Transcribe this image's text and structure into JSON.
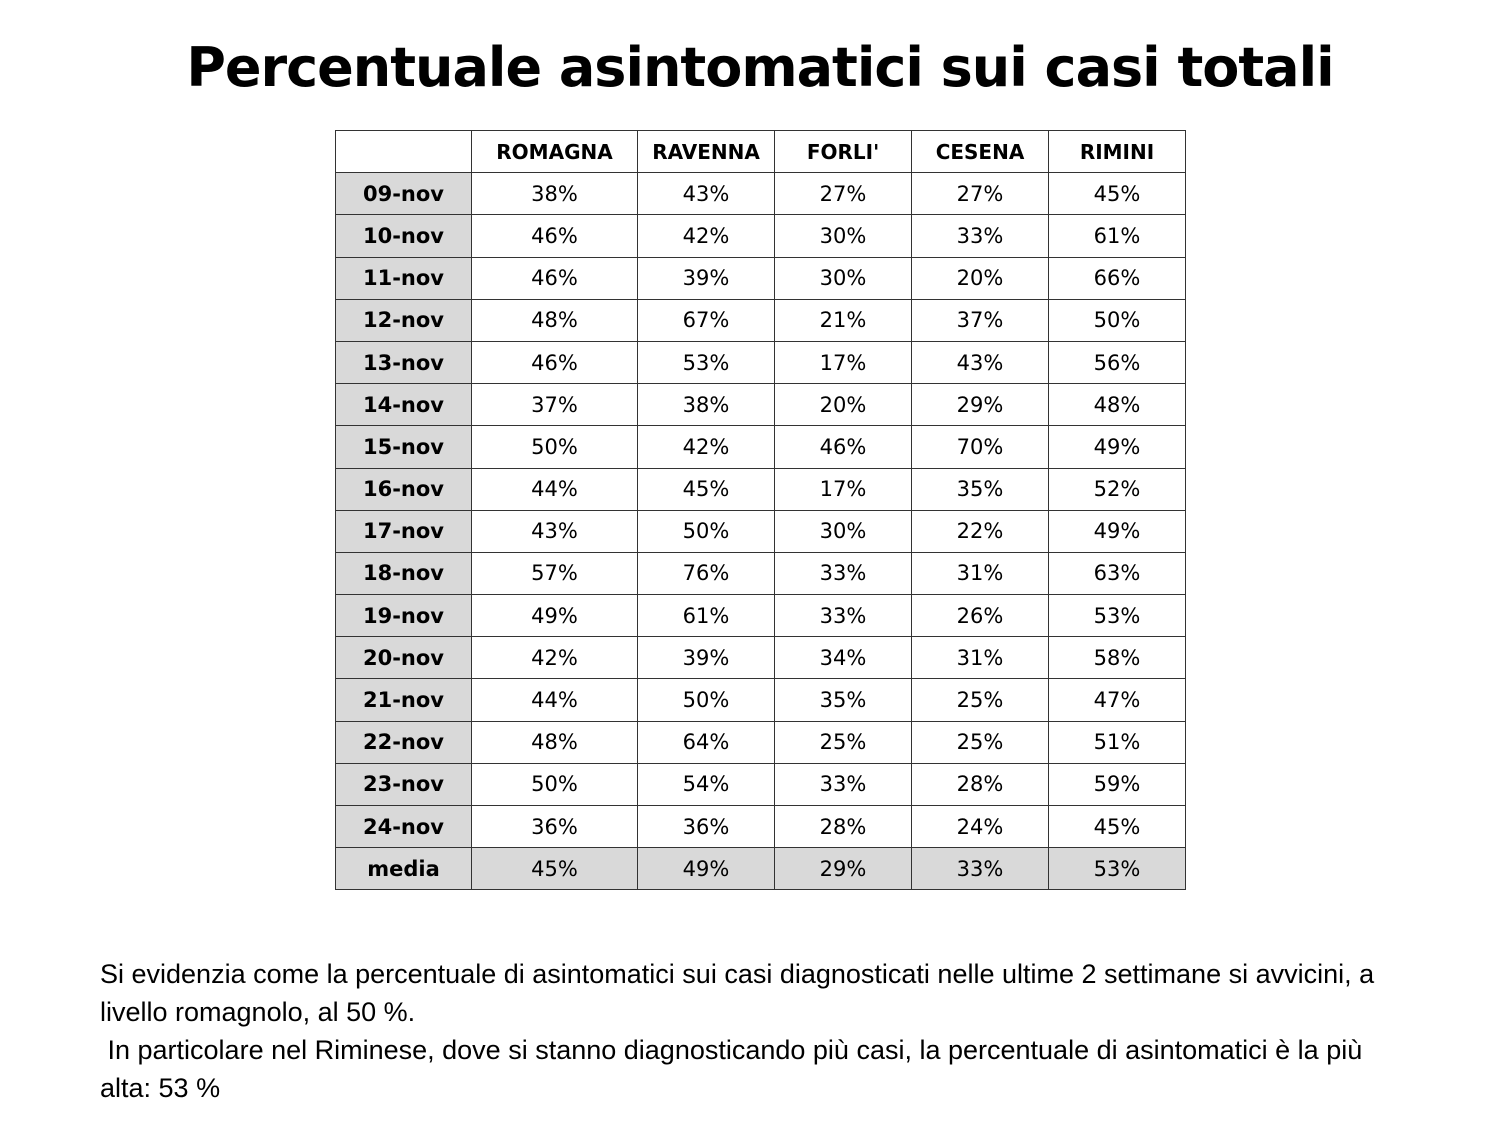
{
  "title": "Percentuale asintomatici sui casi totali",
  "table": {
    "headers": [
      "",
      "ROMAGNA",
      "RAVENNA",
      "FORLI'",
      "CESENA",
      "RIMINI"
    ],
    "rows": [
      {
        "date": "09-nov",
        "values": [
          "38%",
          "43%",
          "27%",
          "27%",
          "45%"
        ]
      },
      {
        "date": "10-nov",
        "values": [
          "46%",
          "42%",
          "30%",
          "33%",
          "61%"
        ]
      },
      {
        "date": "11-nov",
        "values": [
          "46%",
          "39%",
          "30%",
          "20%",
          "66%"
        ]
      },
      {
        "date": "12-nov",
        "values": [
          "48%",
          "67%",
          "21%",
          "37%",
          "50%"
        ]
      },
      {
        "date": "13-nov",
        "values": [
          "46%",
          "53%",
          "17%",
          "43%",
          "56%"
        ]
      },
      {
        "date": "14-nov",
        "values": [
          "37%",
          "38%",
          "20%",
          "29%",
          "48%"
        ]
      },
      {
        "date": "15-nov",
        "values": [
          "50%",
          "42%",
          "46%",
          "70%",
          "49%"
        ]
      },
      {
        "date": "16-nov",
        "values": [
          "44%",
          "45%",
          "17%",
          "35%",
          "52%"
        ]
      },
      {
        "date": "17-nov",
        "values": [
          "43%",
          "50%",
          "30%",
          "22%",
          "49%"
        ]
      },
      {
        "date": "18-nov",
        "values": [
          "57%",
          "76%",
          "33%",
          "31%",
          "63%"
        ]
      },
      {
        "date": "19-nov",
        "values": [
          "49%",
          "61%",
          "33%",
          "26%",
          "53%"
        ]
      },
      {
        "date": "20-nov",
        "values": [
          "42%",
          "39%",
          "34%",
          "31%",
          "58%"
        ]
      },
      {
        "date": "21-nov",
        "values": [
          "44%",
          "50%",
          "35%",
          "25%",
          "47%"
        ]
      },
      {
        "date": "22-nov",
        "values": [
          "48%",
          "64%",
          "25%",
          "25%",
          "51%"
        ]
      },
      {
        "date": "23-nov",
        "values": [
          "50%",
          "54%",
          "33%",
          "28%",
          "59%"
        ]
      },
      {
        "date": "24-nov",
        "values": [
          "36%",
          "36%",
          "28%",
          "24%",
          "45%"
        ]
      }
    ],
    "media": {
      "label": "media",
      "values": [
        "45%",
        "49%",
        "29%",
        "33%",
        "53%"
      ]
    }
  },
  "note": {
    "line1": "Si evidenzia come la percentuale di asintomatici sui casi diagnosticati nelle ultime 2 settimane si avvicini, a livello romagnolo, al 50 %.",
    "line2": " In particolare nel Riminese, dove si stanno diagnosticando più casi, la percentuale di asintomatici è la più alta: 53 %"
  }
}
